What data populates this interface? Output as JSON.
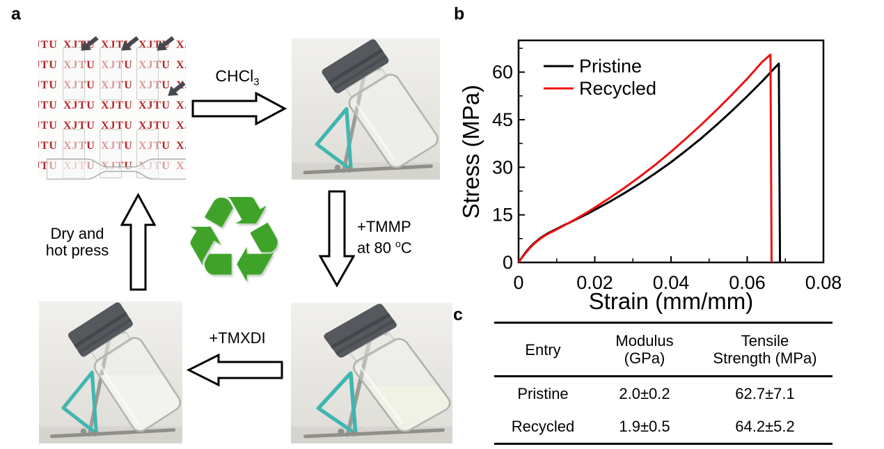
{
  "panel_labels": {
    "a": "a",
    "b": "b",
    "c": "c"
  },
  "panel_a": {
    "film_photo": {
      "watermark": "XJTU",
      "rows": 7,
      "cols": 6
    },
    "labels": {
      "chcl3_base": "CHCl",
      "chcl3_sub": "3",
      "tmmp": "+TMMP",
      "tmmp_cond_pre": "at 80 ",
      "tmmp_cond_sup": "o",
      "tmmp_cond_post": "C",
      "tmxdi": "+TMXDI",
      "dry_line1": "Dry and",
      "dry_line2": "hot press"
    },
    "recycle_glyph": "♻"
  },
  "chart_data": {
    "type": "line",
    "title": "",
    "xlabel": "Strain (mm/mm)",
    "ylabel": "Stress (MPa)",
    "xlim": [
      0,
      0.08
    ],
    "ylim": [
      0,
      70
    ],
    "xticks": [
      0,
      0.02,
      0.04,
      0.06,
      0.08
    ],
    "yticks": [
      0,
      15,
      30,
      45,
      60
    ],
    "x_minor_step": 0.01,
    "y_minor_step": 7.5,
    "grid": false,
    "legend_position": "top-left",
    "series": [
      {
        "name": "Pristine",
        "color": "#000000",
        "points": [
          [
            0,
            0
          ],
          [
            0.001,
            1.8
          ],
          [
            0.002,
            3.4
          ],
          [
            0.003,
            4.8
          ],
          [
            0.004,
            6.0
          ],
          [
            0.005,
            7.0
          ],
          [
            0.006,
            7.9
          ],
          [
            0.007,
            8.7
          ],
          [
            0.008,
            9.4
          ],
          [
            0.01,
            10.6
          ],
          [
            0.012,
            11.8
          ],
          [
            0.014,
            12.9
          ],
          [
            0.016,
            14.1
          ],
          [
            0.018,
            15.3
          ],
          [
            0.02,
            16.6
          ],
          [
            0.024,
            19.2
          ],
          [
            0.028,
            22.0
          ],
          [
            0.032,
            25.0
          ],
          [
            0.036,
            28.2
          ],
          [
            0.04,
            31.6
          ],
          [
            0.044,
            35.3
          ],
          [
            0.048,
            39.2
          ],
          [
            0.052,
            43.4
          ],
          [
            0.056,
            47.8
          ],
          [
            0.06,
            52.4
          ],
          [
            0.064,
            57.2
          ],
          [
            0.0683,
            62.7
          ],
          [
            0.0686,
            0
          ]
        ]
      },
      {
        "name": "Recycled",
        "color": "#ee1111",
        "points": [
          [
            0,
            0
          ],
          [
            0.001,
            1.7
          ],
          [
            0.002,
            3.2
          ],
          [
            0.003,
            4.6
          ],
          [
            0.004,
            5.8
          ],
          [
            0.005,
            6.8
          ],
          [
            0.006,
            7.7
          ],
          [
            0.007,
            8.5
          ],
          [
            0.008,
            9.2
          ],
          [
            0.01,
            10.4
          ],
          [
            0.012,
            11.7
          ],
          [
            0.014,
            13.0
          ],
          [
            0.016,
            14.4
          ],
          [
            0.018,
            15.8
          ],
          [
            0.02,
            17.3
          ],
          [
            0.024,
            20.4
          ],
          [
            0.028,
            23.7
          ],
          [
            0.032,
            27.2
          ],
          [
            0.036,
            30.9
          ],
          [
            0.04,
            34.9
          ],
          [
            0.044,
            39.1
          ],
          [
            0.048,
            43.5
          ],
          [
            0.052,
            48.1
          ],
          [
            0.056,
            52.9
          ],
          [
            0.06,
            57.9
          ],
          [
            0.064,
            63.3
          ],
          [
            0.0661,
            65.5
          ],
          [
            0.0664,
            0
          ]
        ]
      }
    ]
  },
  "table": {
    "headers": [
      "Entry",
      "Modulus\n(GPa)",
      "Tensile\nStrength (MPa)"
    ],
    "rows": [
      [
        "Pristine",
        "2.0±0.2",
        "62.7±7.1"
      ],
      [
        "Recycled",
        "1.9±0.5",
        "64.2±5.2"
      ]
    ]
  },
  "colors": {
    "xjtu_red": "#b5262b",
    "recycle_green": "#3fa32a",
    "pristine_curve": "#000000",
    "recycled_curve": "#ee1111",
    "clip_teal": "#41b6b0",
    "cap_gray": "#55595d"
  }
}
